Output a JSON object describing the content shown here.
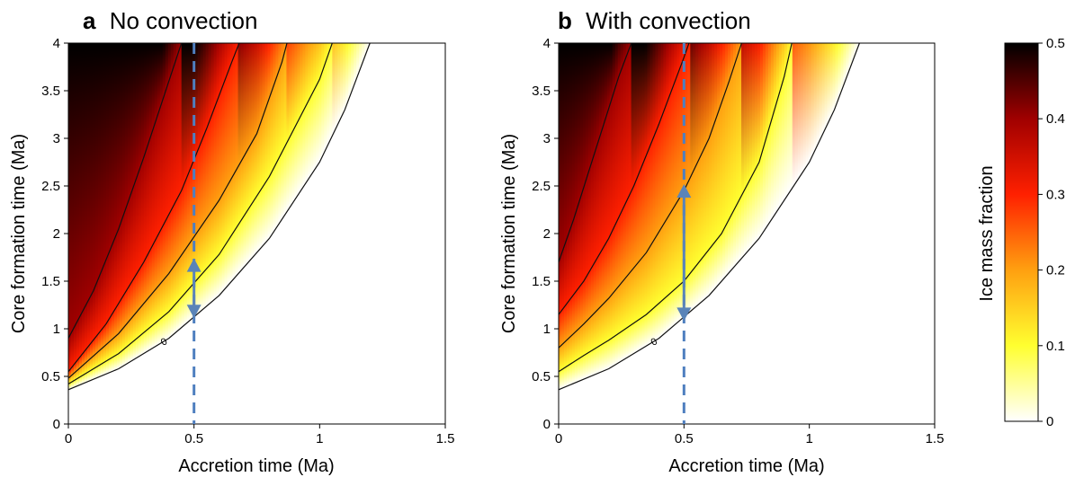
{
  "colorbar": {
    "label": "Ice mass fraction",
    "ticks": [
      0,
      0.1,
      0.2,
      0.3,
      0.4,
      0.5
    ],
    "range": [
      0,
      0.5
    ],
    "colors": [
      "#ffffff",
      "#ffff30",
      "#ffa010",
      "#ff2000",
      "#a00000",
      "#000000"
    ]
  },
  "chart_data": [
    {
      "type": "heatmap",
      "panel_letter": "a",
      "title": "No convection",
      "xlabel": "Accretion time (Ma)",
      "ylabel": "Core formation time (Ma)",
      "xlim": [
        0,
        1.5
      ],
      "ylim": [
        0,
        4
      ],
      "xticks": [
        0,
        0.5,
        1,
        1.5
      ],
      "yticks": [
        0,
        0.5,
        1,
        1.5,
        2,
        2.5,
        3,
        3.5,
        4
      ],
      "contour_levels": [
        0,
        0.1,
        0.2,
        0.3,
        0.4
      ],
      "contour_label": "0",
      "zero_contour": {
        "x": [
          0,
          0.2,
          0.4,
          0.6,
          0.8,
          1.0,
          1.1,
          1.2
        ],
        "y": [
          0.36,
          0.58,
          0.9,
          1.35,
          1.95,
          2.75,
          3.3,
          4.0
        ]
      },
      "contours": [
        {
          "level": 0.1,
          "x": [
            0,
            0.2,
            0.4,
            0.6,
            0.8,
            1.0,
            1.05
          ],
          "y": [
            0.42,
            0.74,
            1.18,
            1.78,
            2.6,
            3.62,
            4.0
          ]
        },
        {
          "level": 0.2,
          "x": [
            0,
            0.2,
            0.4,
            0.6,
            0.75,
            0.85,
            0.87
          ],
          "y": [
            0.48,
            0.95,
            1.58,
            2.35,
            3.05,
            3.8,
            4.0
          ]
        },
        {
          "level": 0.3,
          "x": [
            0,
            0.15,
            0.3,
            0.45,
            0.55,
            0.65,
            0.68
          ],
          "y": [
            0.55,
            1.05,
            1.7,
            2.45,
            3.1,
            3.8,
            4.0
          ]
        },
        {
          "level": 0.4,
          "x": [
            0,
            0.1,
            0.2,
            0.3,
            0.4,
            0.45
          ],
          "y": [
            0.9,
            1.4,
            2.05,
            2.8,
            3.6,
            4.0
          ]
        }
      ],
      "arrow": {
        "x": 0.5,
        "y_low": 1.13,
        "y_high": 1.72
      },
      "dashed_line_x": 0.5
    },
    {
      "type": "heatmap",
      "panel_letter": "b",
      "title": "With convection",
      "xlabel": "Accretion time (Ma)",
      "ylabel": "Core formation time (Ma)",
      "xlim": [
        0,
        1.5
      ],
      "ylim": [
        0,
        4
      ],
      "xticks": [
        0,
        0.5,
        1,
        1.5
      ],
      "yticks": [
        0,
        0.5,
        1,
        1.5,
        2,
        2.5,
        3,
        3.5,
        4
      ],
      "contour_levels": [
        0,
        0.1,
        0.2,
        0.3,
        0.4
      ],
      "contour_label": "0",
      "zero_contour": {
        "x": [
          0,
          0.2,
          0.4,
          0.6,
          0.8,
          1.0,
          1.1,
          1.2
        ],
        "y": [
          0.36,
          0.58,
          0.9,
          1.35,
          1.95,
          2.75,
          3.3,
          4.0
        ]
      },
      "contours": [
        {
          "level": 0.1,
          "x": [
            0,
            0.1,
            0.2,
            0.35,
            0.5,
            0.65,
            0.8,
            0.9,
            0.93
          ],
          "y": [
            0.55,
            0.72,
            0.88,
            1.15,
            1.5,
            2.0,
            2.75,
            3.65,
            4.0
          ]
        },
        {
          "level": 0.2,
          "x": [
            0,
            0.1,
            0.2,
            0.35,
            0.5,
            0.6,
            0.68,
            0.73
          ],
          "y": [
            0.8,
            1.05,
            1.32,
            1.8,
            2.45,
            3.0,
            3.6,
            4.0
          ]
        },
        {
          "level": 0.3,
          "x": [
            0,
            0.1,
            0.2,
            0.3,
            0.4,
            0.5,
            0.52
          ],
          "y": [
            1.15,
            1.5,
            1.95,
            2.5,
            3.15,
            3.85,
            4.0
          ]
        },
        {
          "level": 0.4,
          "x": [
            0,
            0.06,
            0.12,
            0.18,
            0.24,
            0.29
          ],
          "y": [
            1.7,
            2.15,
            2.65,
            3.15,
            3.65,
            4.0
          ]
        }
      ],
      "arrow": {
        "x": 0.5,
        "y_low": 1.1,
        "y_high": 2.5
      },
      "dashed_line_x": 0.5
    }
  ]
}
